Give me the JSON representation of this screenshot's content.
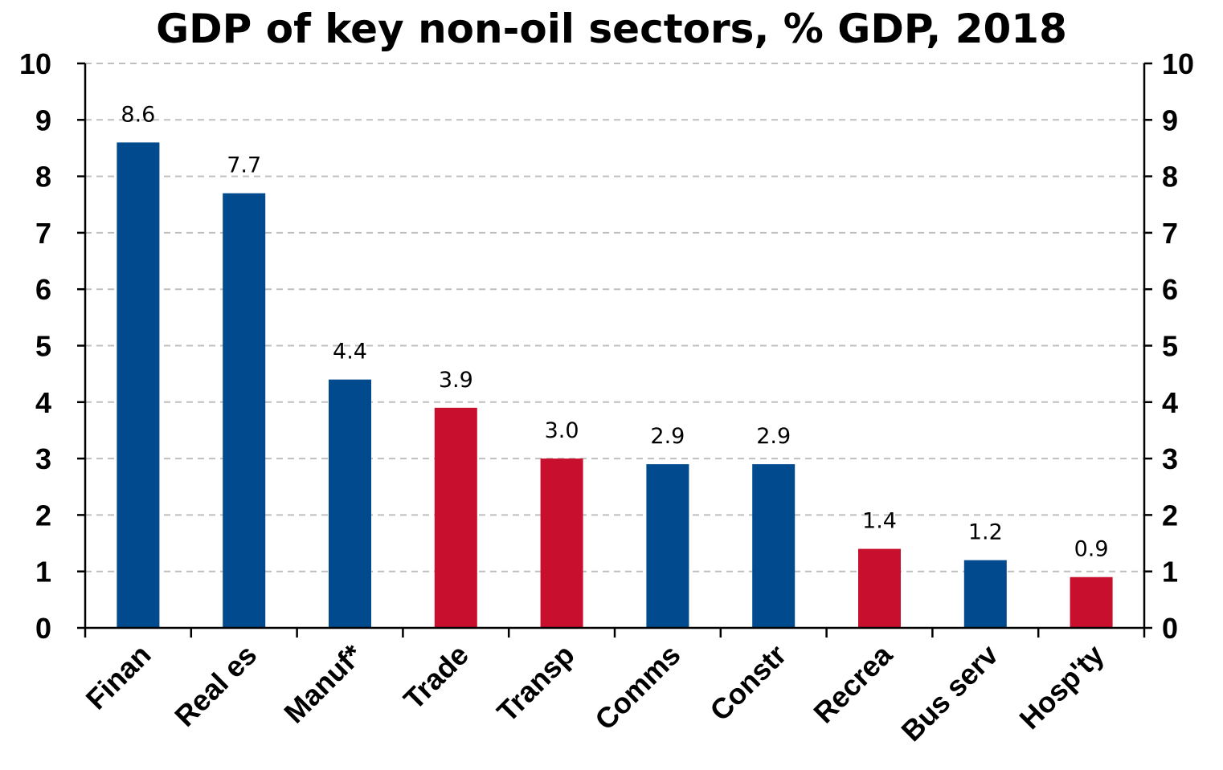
{
  "chart_data": {
    "type": "bar",
    "title": "GDP of key non-oil sectors, % GDP, 2018",
    "categories": [
      "Finan",
      "Real es",
      "Manuf*",
      "Trade",
      "Transp",
      "Comms",
      "Constr",
      "Recrea",
      "Bus serv",
      "Hosp'ty"
    ],
    "values": [
      8.6,
      7.7,
      4.4,
      3.9,
      3.0,
      2.9,
      2.9,
      1.4,
      1.2,
      0.9
    ],
    "value_labels": [
      "8.6",
      "7.7",
      "4.4",
      "3.9",
      "3.0",
      "2.9",
      "2.9",
      "1.4",
      "1.2",
      "0.9"
    ],
    "bar_colors": [
      "#004A8D",
      "#004A8D",
      "#004A8D",
      "#C8102E",
      "#C8102E",
      "#004A8D",
      "#004A8D",
      "#C8102E",
      "#004A8D",
      "#C8102E"
    ],
    "ylim": [
      0,
      10
    ],
    "yticks": [
      "0",
      "1",
      "2",
      "3",
      "4",
      "5",
      "6",
      "7",
      "8",
      "9",
      "10"
    ],
    "xlabel": "",
    "ylabel": "",
    "grid": "horizontal dashed",
    "secondary_y_axis": true
  },
  "colors": {
    "blue": "#004A8D",
    "red": "#C8102E",
    "grid": "#BFBFBF"
  }
}
